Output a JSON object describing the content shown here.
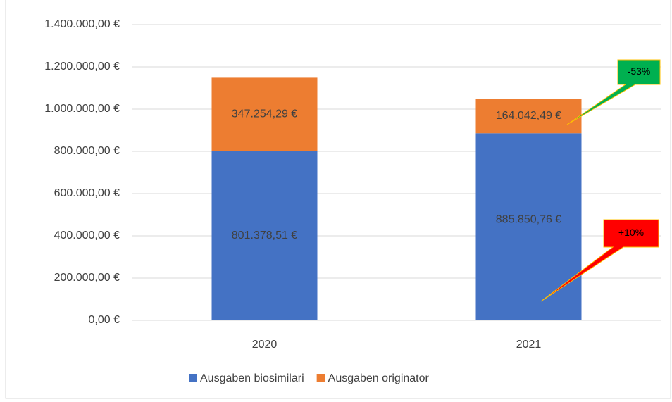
{
  "chart_data": {
    "type": "stacked_bar",
    "categories": [
      "2020",
      "2021"
    ],
    "series": [
      {
        "name": "Ausgaben biosimilari",
        "color": "#4472c4",
        "values": [
          801378.51,
          885850.76
        ],
        "value_labels": [
          "801.378,51 €",
          "885.850,76 €"
        ]
      },
      {
        "name": "Ausgaben originator",
        "color": "#ed7d31",
        "values": [
          347254.29,
          164042.49
        ],
        "value_labels": [
          "347.254,29 €",
          "164.042,49 €"
        ]
      }
    ],
    "ylim": [
      0,
      1400000
    ],
    "yticks": [
      {
        "value": 0,
        "label": "0,00 €"
      },
      {
        "value": 200000,
        "label": "200.000,00 €"
      },
      {
        "value": 400000,
        "label": "400.000,00 €"
      },
      {
        "value": 600000,
        "label": "600.000,00 €"
      },
      {
        "value": 800000,
        "label": "800.000,00 €"
      },
      {
        "value": 1000000,
        "label": "1.000.000,00 €"
      },
      {
        "value": 1200000,
        "label": "1.200.000,00 €"
      },
      {
        "value": 1400000,
        "label": "1.400.000,00 €"
      }
    ],
    "grid": true,
    "legend": "bottom",
    "annotations": [
      {
        "text": "-53%",
        "color": "#00b050"
      },
      {
        "text": "+10%",
        "color": "#ff0000"
      }
    ]
  }
}
